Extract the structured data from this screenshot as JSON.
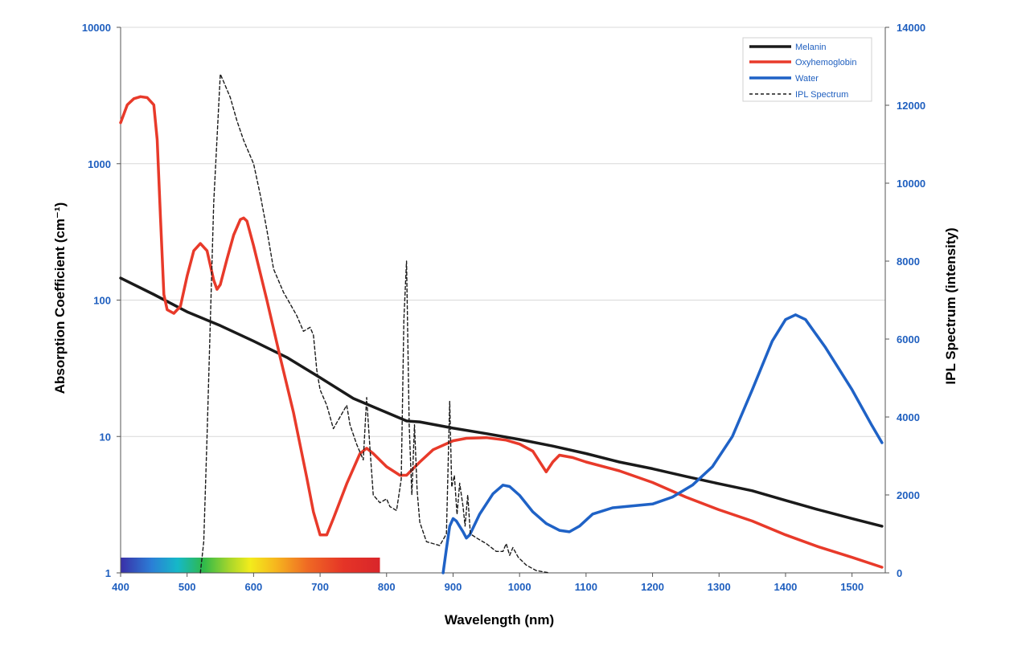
{
  "colors": {
    "axis_text": "#1f5fbf",
    "melanin": "#1a1a1a",
    "oxyhemoglobin": "#e83a2a",
    "water": "#1f62c6",
    "ipl": "#1a1a1a",
    "grid": "#d9d9d9"
  },
  "chart_data": {
    "type": "line",
    "title": "",
    "xlabel": "Wavelength (nm)",
    "ylabel_left": "Absorption Coefficient (cm⁻¹)",
    "ylabel_right": "IPL Spectrum (intensity)",
    "xlim": [
      400,
      1550
    ],
    "ylim_left": [
      1,
      10000
    ],
    "ylim_right": [
      0,
      14000
    ],
    "left_scale": "log",
    "grid": "horizontal",
    "legend_position": "top-right",
    "x_ticks": [
      "400",
      "500",
      "600",
      "700",
      "800",
      "900",
      "1000",
      "1100",
      "1200",
      "1300",
      "1400",
      "1500"
    ],
    "y_left_ticks": [
      "1",
      "10",
      "100",
      "1000",
      "10000"
    ],
    "y_right_ticks": [
      "0",
      "2000",
      "4000",
      "6000",
      "8000",
      "10000",
      "12000",
      "14000"
    ],
    "visible_spectrum_bar": {
      "from": 400,
      "to": 790
    },
    "series": [
      {
        "name": "Melanin",
        "axis": "left",
        "style": "solid",
        "points": [
          [
            400,
            145
          ],
          [
            450,
            110
          ],
          [
            500,
            82
          ],
          [
            550,
            65
          ],
          [
            600,
            50
          ],
          [
            650,
            38
          ],
          [
            700,
            27
          ],
          [
            750,
            19
          ],
          [
            800,
            15
          ],
          [
            830,
            13
          ],
          [
            850,
            12.8
          ],
          [
            900,
            11.5
          ],
          [
            950,
            10.5
          ],
          [
            1000,
            9.5
          ],
          [
            1050,
            8.5
          ],
          [
            1100,
            7.5
          ],
          [
            1150,
            6.5
          ],
          [
            1200,
            5.8
          ],
          [
            1250,
            5.1
          ],
          [
            1300,
            4.5
          ],
          [
            1350,
            4
          ],
          [
            1400,
            3.4
          ],
          [
            1450,
            2.9
          ],
          [
            1500,
            2.5
          ],
          [
            1545,
            2.2
          ]
        ]
      },
      {
        "name": "Oxyhemoglobin",
        "axis": "left",
        "style": "solid",
        "points": [
          [
            400,
            2000
          ],
          [
            410,
            2700
          ],
          [
            420,
            3000
          ],
          [
            430,
            3100
          ],
          [
            440,
            3050
          ],
          [
            450,
            2700
          ],
          [
            455,
            1500
          ],
          [
            460,
            400
          ],
          [
            465,
            110
          ],
          [
            470,
            85
          ],
          [
            480,
            80
          ],
          [
            490,
            90
          ],
          [
            500,
            150
          ],
          [
            510,
            230
          ],
          [
            520,
            260
          ],
          [
            530,
            230
          ],
          [
            540,
            140
          ],
          [
            545,
            120
          ],
          [
            550,
            130
          ],
          [
            560,
            200
          ],
          [
            570,
            300
          ],
          [
            580,
            390
          ],
          [
            585,
            400
          ],
          [
            590,
            380
          ],
          [
            600,
            250
          ],
          [
            620,
            100
          ],
          [
            640,
            38
          ],
          [
            660,
            15
          ],
          [
            680,
            5
          ],
          [
            690,
            2.8
          ],
          [
            700,
            1.9
          ],
          [
            710,
            1.9
          ],
          [
            720,
            2.5
          ],
          [
            740,
            4.5
          ],
          [
            760,
            7.5
          ],
          [
            770,
            8.2
          ],
          [
            780,
            7.5
          ],
          [
            800,
            6
          ],
          [
            820,
            5.2
          ],
          [
            830,
            5.2
          ],
          [
            850,
            6.5
          ],
          [
            870,
            8
          ],
          [
            900,
            9.3
          ],
          [
            920,
            9.7
          ],
          [
            950,
            9.8
          ],
          [
            980,
            9.4
          ],
          [
            1000,
            8.8
          ],
          [
            1020,
            7.8
          ],
          [
            1040,
            5.5
          ],
          [
            1050,
            6.5
          ],
          [
            1060,
            7.3
          ],
          [
            1080,
            7
          ],
          [
            1100,
            6.5
          ],
          [
            1150,
            5.6
          ],
          [
            1200,
            4.6
          ],
          [
            1250,
            3.6
          ],
          [
            1300,
            2.9
          ],
          [
            1350,
            2.4
          ],
          [
            1400,
            1.9
          ],
          [
            1450,
            1.55
          ],
          [
            1500,
            1.3
          ],
          [
            1545,
            1.1
          ]
        ]
      },
      {
        "name": "Water",
        "axis": "left",
        "style": "solid",
        "points": [
          [
            885,
            1
          ],
          [
            890,
            1.5
          ],
          [
            895,
            2.2
          ],
          [
            900,
            2.5
          ],
          [
            905,
            2.4
          ],
          [
            915,
            2
          ],
          [
            920,
            1.8
          ],
          [
            925,
            1.9
          ],
          [
            940,
            2.7
          ],
          [
            960,
            3.8
          ],
          [
            975,
            4.4
          ],
          [
            985,
            4.3
          ],
          [
            1000,
            3.7
          ],
          [
            1020,
            2.8
          ],
          [
            1040,
            2.3
          ],
          [
            1060,
            2.05
          ],
          [
            1075,
            2
          ],
          [
            1090,
            2.2
          ],
          [
            1110,
            2.7
          ],
          [
            1140,
            3
          ],
          [
            1170,
            3.1
          ],
          [
            1200,
            3.2
          ],
          [
            1230,
            3.6
          ],
          [
            1260,
            4.4
          ],
          [
            1290,
            6
          ],
          [
            1320,
            10
          ],
          [
            1350,
            22
          ],
          [
            1380,
            50
          ],
          [
            1400,
            72
          ],
          [
            1415,
            78
          ],
          [
            1430,
            72
          ],
          [
            1460,
            45
          ],
          [
            1500,
            22
          ],
          [
            1530,
            12
          ],
          [
            1545,
            9
          ]
        ]
      },
      {
        "name": "IPL Spectrum",
        "axis": "right",
        "style": "dashed",
        "points": [
          [
            520,
            0
          ],
          [
            525,
            800
          ],
          [
            530,
            3500
          ],
          [
            540,
            9500
          ],
          [
            550,
            12800
          ],
          [
            555,
            12600
          ],
          [
            565,
            12200
          ],
          [
            575,
            11600
          ],
          [
            585,
            11100
          ],
          [
            590,
            10900
          ],
          [
            600,
            10500
          ],
          [
            610,
            9700
          ],
          [
            620,
            8800
          ],
          [
            630,
            7800
          ],
          [
            645,
            7200
          ],
          [
            655,
            6900
          ],
          [
            665,
            6600
          ],
          [
            675,
            6200
          ],
          [
            685,
            6300
          ],
          [
            690,
            6100
          ],
          [
            695,
            5200
          ],
          [
            700,
            4700
          ],
          [
            710,
            4300
          ],
          [
            720,
            3700
          ],
          [
            730,
            4000
          ],
          [
            740,
            4300
          ],
          [
            745,
            3800
          ],
          [
            755,
            3300
          ],
          [
            765,
            2900
          ],
          [
            770,
            4500
          ],
          [
            775,
            3200
          ],
          [
            780,
            2000
          ],
          [
            790,
            1800
          ],
          [
            800,
            1900
          ],
          [
            805,
            1700
          ],
          [
            815,
            1600
          ],
          [
            822,
            2400
          ],
          [
            826,
            6500
          ],
          [
            830,
            8000
          ],
          [
            834,
            3800
          ],
          [
            838,
            2000
          ],
          [
            842,
            3800
          ],
          [
            846,
            2100
          ],
          [
            850,
            1300
          ],
          [
            860,
            800
          ],
          [
            880,
            700
          ],
          [
            890,
            1000
          ],
          [
            895,
            4400
          ],
          [
            898,
            2200
          ],
          [
            902,
            2500
          ],
          [
            906,
            1500
          ],
          [
            910,
            2300
          ],
          [
            915,
            1700
          ],
          [
            918,
            1200
          ],
          [
            922,
            2000
          ],
          [
            926,
            1000
          ],
          [
            935,
            900
          ],
          [
            950,
            750
          ],
          [
            965,
            550
          ],
          [
            975,
            550
          ],
          [
            980,
            750
          ],
          [
            985,
            450
          ],
          [
            990,
            650
          ],
          [
            998,
            400
          ],
          [
            1010,
            200
          ],
          [
            1025,
            60
          ],
          [
            1045,
            0
          ]
        ]
      }
    ]
  }
}
